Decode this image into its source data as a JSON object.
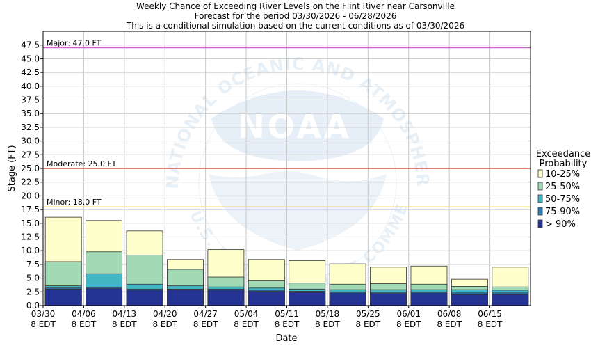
{
  "chart_data": {
    "type": "bar",
    "title": "Weekly Chance of Exceeding River Levels on the Flint River near Carsonville",
    "subtitle": "Forecast for the period 03/30/2026 - 06/28/2026",
    "note": "This is a conditional simulation based on the current conditions as of 03/30/2026",
    "xlabel": "Date",
    "ylabel": "Stage (FT)",
    "ylim": [
      0,
      50
    ],
    "yticks": [
      "0.0",
      "2.5",
      "5.0",
      "7.5",
      "10.0",
      "12.5",
      "15.0",
      "17.5",
      "20.0",
      "22.5",
      "25.0",
      "27.5",
      "30.0",
      "32.5",
      "35.0",
      "37.5",
      "40.0",
      "42.5",
      "45.0",
      "47.5"
    ],
    "xticks": [
      {
        "line1": "03/30",
        "line2": "8 EDT"
      },
      {
        "line1": "04/06",
        "line2": "8 EDT"
      },
      {
        "line1": "04/13",
        "line2": "8 EDT"
      },
      {
        "line1": "04/20",
        "line2": "8 EDT"
      },
      {
        "line1": "04/27",
        "line2": "8 EDT"
      },
      {
        "line1": "05/04",
        "line2": "8 EDT"
      },
      {
        "line1": "05/11",
        "line2": "8 EDT"
      },
      {
        "line1": "05/18",
        "line2": "8 EDT"
      },
      {
        "line1": "05/25",
        "line2": "8 EDT"
      },
      {
        "line1": "06/01",
        "line2": "8 EDT"
      },
      {
        "line1": "06/08",
        "line2": "8 EDT"
      },
      {
        "line1": "06/15",
        "line2": "8 EDT"
      }
    ],
    "grid": true,
    "legend_title": [
      "Exceedance",
      "Probability"
    ],
    "legend_position": "right",
    "series": [
      {
        "name": "10-25%",
        "color": "#ffffcc",
        "values": [
          16.1,
          15.5,
          13.6,
          8.4,
          10.2,
          8.4,
          8.2,
          7.6,
          7.0,
          7.2,
          4.8,
          7.0
        ]
      },
      {
        "name": "25-50%",
        "color": "#a1dab4",
        "values": [
          8.0,
          9.8,
          9.2,
          6.6,
          5.2,
          4.5,
          4.1,
          3.9,
          4.0,
          3.9,
          3.5,
          3.4
        ]
      },
      {
        "name": "50-75%",
        "color": "#41b6c4",
        "values": [
          3.6,
          5.8,
          3.9,
          3.6,
          3.4,
          3.2,
          3.0,
          2.9,
          2.9,
          2.9,
          2.9,
          2.8
        ]
      },
      {
        "name": "75-90%",
        "color": "#2c7fb8",
        "values": [
          3.2,
          3.3,
          3.0,
          3.0,
          3.0,
          2.8,
          2.6,
          2.5,
          2.4,
          2.5,
          2.3,
          2.3
        ]
      },
      {
        "name": "> 90%",
        "color": "#253494",
        "values": [
          3.0,
          3.1,
          2.8,
          2.9,
          2.8,
          2.6,
          2.4,
          2.3,
          2.2,
          2.3,
          2.0,
          2.0
        ]
      }
    ],
    "thresholds": [
      {
        "label": "Major: 47.0 FT",
        "value": 47.0,
        "color": "#cc66cc"
      },
      {
        "label": "Moderate: 25.0 FT",
        "value": 25.0,
        "color": "#e03030"
      },
      {
        "label": "Minor: 18.0 FT",
        "value": 18.0,
        "color": "#e8e070"
      }
    ],
    "watermark": {
      "logo_text": "NOAA",
      "ring_text": "NATIONAL OCEANIC AND ATMOSPHERIC ADMINISTRATION",
      "ring_text_bottom": "U.S. DEPARTMENT OF COMMERCE"
    }
  }
}
